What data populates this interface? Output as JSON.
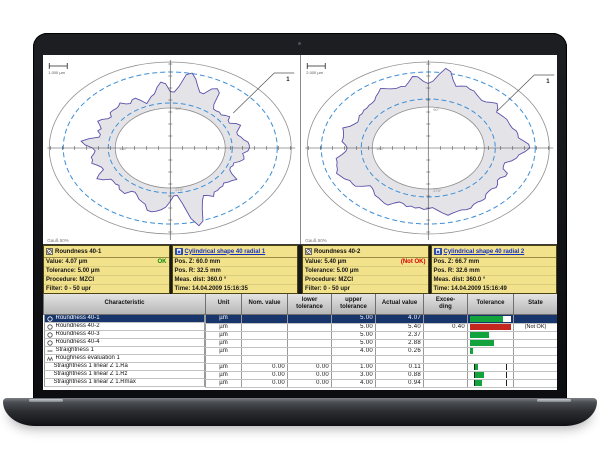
{
  "app": {
    "description": "Form measurement software report on laptop",
    "accent_green": "#12a33c",
    "accent_red": "#c3271e",
    "panel_yellow": "#f3e28c",
    "selected_row_blue": "#18366b"
  },
  "plots": [
    {
      "name": "Roundness plot 40-1",
      "scale_label": "1.000 µm",
      "filter_label": "Gauß 50%",
      "marker_label": "1",
      "angles": {
        "right": "0°",
        "top": "90°",
        "left": "180°",
        "bottom": "270°"
      }
    },
    {
      "name": "Roundness plot 40-2",
      "scale_label": "2.000 µm",
      "filter_label": "Gauß 50%",
      "marker_label": "1",
      "angles": {
        "right": "0°",
        "top": "90°",
        "left": "180°",
        "bottom": "270°"
      }
    }
  ],
  "panels": [
    {
      "title": "Roundness 40-1",
      "icon": "roundness-icon",
      "r1": "Value: 4.07 µm",
      "r1_status": "OK",
      "r2": "Tolerance: 5.00 µm",
      "r3": "Procedure: MZCI",
      "r4": "Filter: 0 - 50 upr"
    },
    {
      "title": "Cylindrical shape 40 radial 1",
      "icon": "cylindricity-icon",
      "r1": "Pos. Z: 60.0 mm",
      "r2": "Pos. R: 32.5 mm",
      "r3": "Meas. dist: 360.0 °",
      "r4": "Time: 14.04.2009 15:16:35"
    },
    {
      "title": "Roundness 40-2",
      "icon": "roundness-icon",
      "r1": "Value: 5.40 µm",
      "r1_status": "(Not OK)",
      "r2": "Tolerance: 5.00 µm",
      "r3": "Procedure: MZCI",
      "r4": "Filter: 0 - 50 upr"
    },
    {
      "title": "Cylindrical shape 40 radial 2",
      "icon": "cylindricity-icon",
      "r1": "Pos. Z: 66.7 mm",
      "r2": "Pos. R: 32.6 mm",
      "r3": "Meas. dist: 360.0 °",
      "r4": "Time: 14.04.2009 15:16:49"
    }
  ],
  "table": {
    "headers": [
      "Characteristic",
      "Unit",
      "Nom. value",
      "lower\ntolerance",
      "upper\ntolerance",
      "Actual value",
      "Excee-\nding",
      "Tolerance",
      "State"
    ],
    "rows": [
      {
        "icon": "roundness-icon",
        "characteristic": "Roundness 40-1",
        "unit": "µm",
        "nom": "",
        "lower": "",
        "upper": "5.00",
        "actual": "4.07",
        "excess": "",
        "state": "",
        "bar_pct": 81,
        "bar_color": "#12a33c",
        "selected": true
      },
      {
        "icon": "roundness-icon",
        "characteristic": "Roundness 40-2",
        "unit": "µm",
        "nom": "",
        "lower": "",
        "upper": "5.00",
        "actual": "5.40",
        "excess": "0.40",
        "state": "(Not OK)",
        "bar_pct": 100,
        "bar_color": "#c3271e"
      },
      {
        "icon": "roundness-icon",
        "characteristic": "Roundness 40-3",
        "unit": "µm",
        "nom": "",
        "lower": "",
        "upper": "5.00",
        "actual": "2.37",
        "excess": "",
        "state": "",
        "bar_pct": 47,
        "bar_color": "#12a33c"
      },
      {
        "icon": "roundness-icon",
        "characteristic": "Roundness 40-4",
        "unit": "µm",
        "nom": "",
        "lower": "",
        "upper": "5.00",
        "actual": "2.88",
        "excess": "",
        "state": "",
        "bar_pct": 58,
        "bar_color": "#12a33c"
      },
      {
        "icon": "straightness-icon",
        "characteristic": "Straightness 1",
        "unit": "µm",
        "nom": "",
        "lower": "",
        "upper": "4.00",
        "actual": "0.26",
        "excess": "",
        "state": "",
        "bar_pct": 7,
        "bar_color": "#12a33c"
      },
      {
        "icon": "roughness-icon",
        "characteristic": "Roughness evaluation 1",
        "unit": "",
        "nom": "",
        "lower": "",
        "upper": "",
        "actual": "",
        "excess": "",
        "state": ""
      },
      {
        "characteristic": "Straightness 1 linear Z 1.Ra",
        "unit": "µm",
        "nom": "0.00",
        "lower": "0.00",
        "upper": "1.00",
        "actual": "0.11",
        "excess": "",
        "state": "",
        "bar_pct": 11,
        "bar_color": "#12a33c",
        "indent": true
      },
      {
        "characteristic": "Straightness 1 linear Z 1.Rz",
        "unit": "µm",
        "nom": "0.00",
        "lower": "0.00",
        "upper": "3.00",
        "actual": "0.88",
        "excess": "",
        "state": "",
        "bar_pct": 29,
        "bar_color": "#12a33c",
        "indent": true
      },
      {
        "characteristic": "Straightness 1 linear Z 1.Rmax",
        "unit": "µm",
        "nom": "0.00",
        "lower": "0.00",
        "upper": "4.00",
        "actual": "0.94",
        "excess": "",
        "state": "",
        "bar_pct": 24,
        "bar_color": "#12a33c",
        "indent": true
      }
    ]
  }
}
